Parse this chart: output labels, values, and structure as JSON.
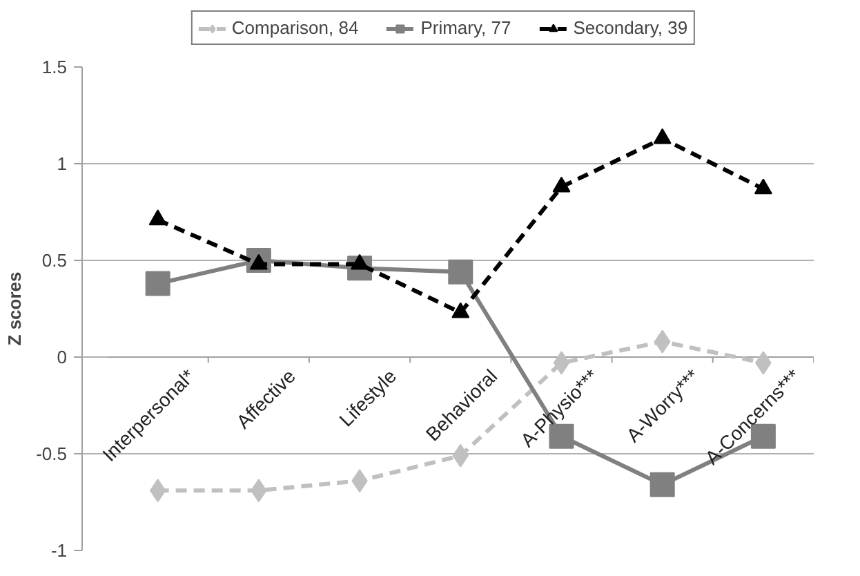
{
  "chart_data": {
    "type": "line",
    "ylabel": "Z scores",
    "categories": [
      "Interpersonal*",
      "Affective",
      "Lifestyle",
      "Behavioral",
      "A-Physio***",
      "A-Worry***",
      "A-Concerns***"
    ],
    "ylim": [
      -1,
      1.5
    ],
    "yticks": [
      -1,
      -0.5,
      0,
      0.5,
      1,
      1.5
    ],
    "grid": "y",
    "legend": "top",
    "series": [
      {
        "name": "Comparison, 84",
        "color": "#c0c0c0",
        "marker": "diamond",
        "line_style": "dashed",
        "values": [
          -0.69,
          -0.69,
          -0.64,
          -0.51,
          -0.03,
          0.08,
          -0.03
        ]
      },
      {
        "name": "Primary, 77",
        "color": "#808080",
        "marker": "square",
        "line_style": "solid",
        "values": [
          0.38,
          0.5,
          0.46,
          0.44,
          -0.41,
          -0.66,
          -0.41
        ]
      },
      {
        "name": "Secondary, 39",
        "color": "#000000",
        "marker": "triangle",
        "line_style": "dashed",
        "values": [
          0.71,
          0.48,
          0.48,
          0.23,
          0.88,
          1.13,
          0.87
        ]
      }
    ]
  }
}
